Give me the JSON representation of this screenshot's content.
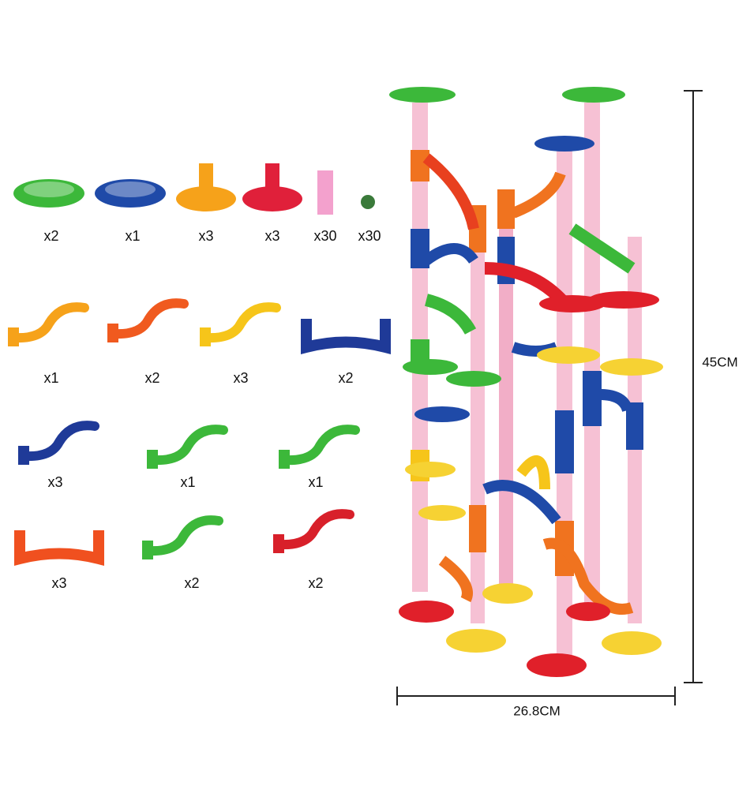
{
  "parts": [
    {
      "quantity": "x2"
    },
    {
      "quantity": "x1"
    },
    {
      "quantity": "x3"
    },
    {
      "quantity": "x3"
    },
    {
      "quantity": "x30"
    },
    {
      "quantity": "x30"
    },
    {
      "quantity": "x1"
    },
    {
      "quantity": "x2"
    },
    {
      "quantity": "x3"
    },
    {
      "quantity": "x2"
    },
    {
      "quantity": "x3"
    },
    {
      "quantity": "x1"
    },
    {
      "quantity": "x1"
    },
    {
      "quantity": "x3"
    },
    {
      "quantity": "x2"
    },
    {
      "quantity": "x2"
    }
  ],
  "dimensions": {
    "height": "45CM",
    "width": "26.8CM"
  }
}
